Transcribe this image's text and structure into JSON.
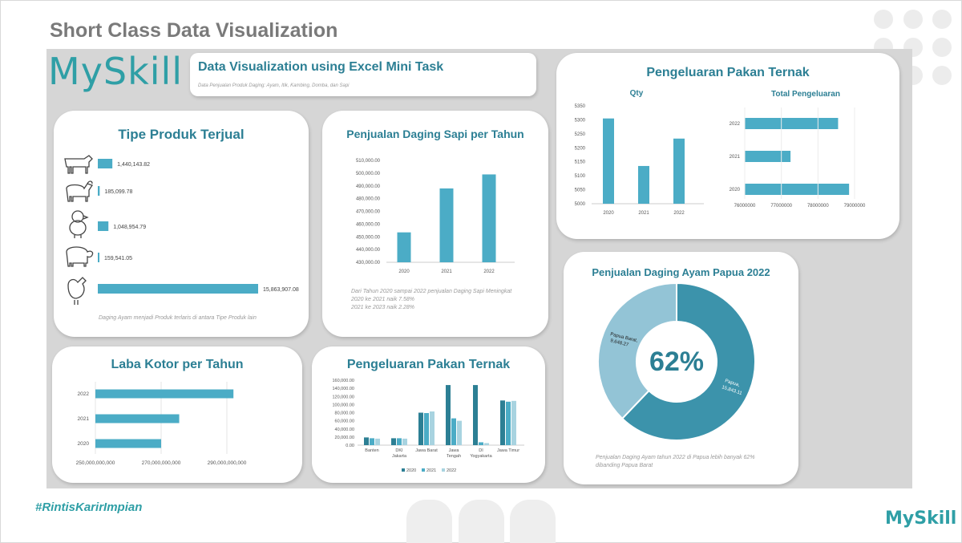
{
  "slide": {
    "title": "Short Class Data Visualization"
  },
  "brand": {
    "logo_text": "MySkill",
    "hashtag": "#RintisKarirImpian",
    "accent_color": "#2f9fa6",
    "title_color": "#2c7f94",
    "bar_color": "#4bacc6"
  },
  "header": {
    "title": "Data Visualization using Excel Mini Task",
    "subtitle": "Data Penjualan Produk Daging: Ayam, Itik, Kambing, Domba, dan Sapi"
  },
  "tipe_produk": {
    "title": "Tipe Produk Terjual",
    "note": "Daging Ayam menjadi Produk terlaris di antara Tipe Produk lain",
    "icons": [
      "cow-icon",
      "goat-icon",
      "chick-icon",
      "sheep-icon",
      "chicken-icon"
    ]
  },
  "sapi": {
    "title": "Penjualan Daging Sapi per Tahun",
    "note_lines": [
      "Dari Tahun 2020 sampai 2022 penjualan Daging Sapi Meningkat",
      "2020 ke 2021 naik 7.58%",
      "2021 ke 2023 naik 2.28%"
    ]
  },
  "pakan_top": {
    "title": "Pengeluaran Pakan Ternak",
    "qty_title": "Qty",
    "total_title": "Total Pengeluaran"
  },
  "laba": {
    "title": "Laba Kotor per Tahun"
  },
  "pakan_bottom": {
    "title": "Pengeluaran Pakan Ternak"
  },
  "ayam_papua": {
    "title": "Penjualan Daging Ayam Papua 2022",
    "center_label": "62%",
    "slice_labels": [
      "Papua Barat, 9,648.27",
      "Papua, 15,843.11"
    ],
    "note_lines": [
      "Penjualan Daging Ayam tahun 2022 di Papua lebih banyak 62%",
      "dibanding Papua Barat"
    ]
  },
  "chart_data": [
    {
      "type": "bar",
      "orientation": "horizontal",
      "categories": [
        "Sapi",
        "Kambing",
        "Itik",
        "Domba",
        "Ayam"
      ],
      "values": [
        1440143.82,
        185099.78,
        1048954.79,
        159541.05,
        15863907.08
      ],
      "data_labels": [
        "1,440,143.82",
        "185,099.78",
        "1,048,954.79",
        "159,541.05",
        "15,863,907.08"
      ],
      "title": "Tipe Produk Terjual"
    },
    {
      "type": "bar",
      "categories": [
        "2020",
        "2021",
        "2022"
      ],
      "values": [
        453500,
        488000,
        499000
      ],
      "title": "Penjualan Daging Sapi per Tahun",
      "ylim": [
        430000,
        510000
      ],
      "yticks": [
        "430,000.00",
        "440,000.00",
        "450,000.00",
        "460,000.00",
        "470,000.00",
        "480,000.00",
        "490,000.00",
        "500,000.00",
        "510,000.00"
      ]
    },
    {
      "type": "bar",
      "categories": [
        "2020",
        "2021",
        "2022"
      ],
      "values": [
        5305,
        5135,
        5233
      ],
      "title": "Qty",
      "ylim": [
        5000,
        5350
      ],
      "yticks": [
        "5000",
        "5050",
        "5100",
        "5150",
        "5200",
        "5250",
        "5300",
        "5350"
      ]
    },
    {
      "type": "bar",
      "orientation": "horizontal",
      "categories": [
        "2022",
        "2021",
        "2020"
      ],
      "values": [
        78550000,
        77250000,
        78850000
      ],
      "title": "Total Pengeluaran",
      "xlim": [
        76000000,
        79000000
      ],
      "xticks": [
        "76000000",
        "77000000",
        "78000000",
        "79000000"
      ]
    },
    {
      "type": "bar",
      "orientation": "horizontal",
      "categories": [
        "2022",
        "2021",
        "2020"
      ],
      "values": [
        292000000000,
        275500000000,
        270000000000
      ],
      "title": "Laba Kotor per Tahun",
      "xlim": [
        250000000000,
        290000000000
      ],
      "xticks": [
        "250,000,000,000",
        "270,000,000,000",
        "290,000,000,000"
      ]
    },
    {
      "type": "bar",
      "categories": [
        "Banten",
        "DKI Jakarta",
        "Jawa Barat",
        "Jawa Tengah",
        "DI Yogyakarta",
        "Jawa Timur"
      ],
      "series": [
        {
          "name": "2020",
          "values": [
            19000,
            17000,
            80000,
            148000,
            148000,
            110000
          ]
        },
        {
          "name": "2021",
          "values": [
            17000,
            17000,
            79000,
            66000,
            7000,
            107000
          ]
        },
        {
          "name": "2022",
          "values": [
            16000,
            16000,
            83000,
            60000,
            5000,
            109000
          ]
        }
      ],
      "title": "Pengeluaran Pakan Ternak",
      "ylim": [
        0,
        160000
      ],
      "yticks": [
        "0.00",
        "20,000.00",
        "40,000.00",
        "60,000.00",
        "80,000.00",
        "100,000.00",
        "120,000.00",
        "140,000.00",
        "160,000.00"
      ],
      "series_colors": [
        "#2c7f94",
        "#4bacc6",
        "#a8d3e0"
      ]
    },
    {
      "type": "pie",
      "donut": true,
      "categories": [
        "Papua",
        "Papua Barat"
      ],
      "values": [
        15843.11,
        9648.27
      ],
      "title": "Penjualan Daging Ayam Papua 2022",
      "colors": [
        "#3c93ab",
        "#93c4d6"
      ]
    }
  ]
}
